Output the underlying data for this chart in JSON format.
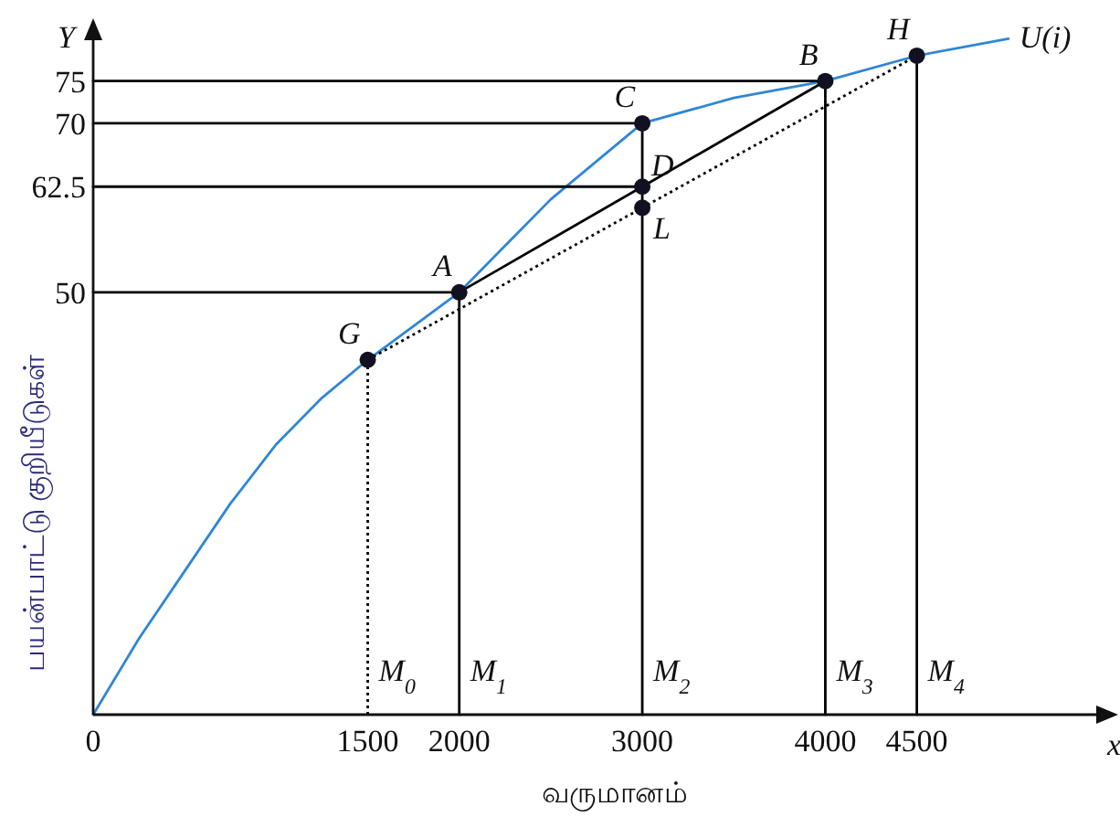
{
  "chart_data": {
    "type": "line",
    "xlabel": "வருமானம்",
    "ylabel": "பயன்பாட்டு  குறியீடுகள்",
    "xlim": [
      0,
      5580
    ],
    "ylim": [
      0,
      82
    ],
    "xticks": [
      0,
      1500,
      2000,
      3000,
      4000,
      4500
    ],
    "yticks": [
      50,
      62.5,
      70,
      75
    ],
    "series": [
      {
        "name": "U(i)",
        "color": "#2f86d6",
        "x": [
          0,
          250,
          500,
          750,
          1000,
          1250,
          1500,
          2000,
          2500,
          3000,
          3500,
          4000,
          4500,
          5000
        ],
        "values": [
          0,
          9,
          17,
          25,
          32,
          37.5,
          42,
          50,
          61,
          70,
          73,
          75,
          78,
          80
        ]
      },
      {
        "color": "#000000",
        "x": [
          2000,
          4000
        ],
        "values": [
          50,
          75
        ]
      },
      {
        "color": "#000000",
        "line_style": "dotted",
        "x": [
          1500,
          4500
        ],
        "values": [
          42,
          78
        ]
      },
      {
        "color": "#000000",
        "line_style": "dotted",
        "x": [
          1500,
          1500
        ],
        "values": [
          0,
          42
        ]
      },
      {
        "color": "#000000",
        "x": [
          2000,
          2000
        ],
        "values": [
          0,
          50
        ]
      },
      {
        "color": "#000000",
        "x": [
          3000,
          3000
        ],
        "values": [
          0,
          70
        ]
      },
      {
        "color": "#000000",
        "x": [
          4000,
          4000
        ],
        "values": [
          0,
          75
        ]
      },
      {
        "color": "#000000",
        "x": [
          4500,
          4500
        ],
        "values": [
          0,
          78
        ]
      },
      {
        "color": "#000000",
        "x": [
          0,
          2000
        ],
        "values": [
          50,
          50
        ]
      },
      {
        "color": "#000000",
        "x": [
          0,
          3000
        ],
        "values": [
          62.5,
          62.5
        ]
      },
      {
        "color": "#000000",
        "x": [
          0,
          3000
        ],
        "values": [
          70,
          70
        ]
      },
      {
        "color": "#000000",
        "x": [
          0,
          4000
        ],
        "values": [
          75,
          75
        ]
      },
      {
        "type": "scatter",
        "marker": "circle",
        "color": "#111122",
        "x": [
          1500,
          2000,
          3000,
          3000,
          3000,
          4000,
          4500
        ],
        "values": [
          42,
          50,
          70,
          62.5,
          60,
          75,
          78
        ]
      }
    ],
    "annotations": [
      {
        "text": "G",
        "x": 1500,
        "y": 42
      },
      {
        "text": "A",
        "x": 2000,
        "y": 50
      },
      {
        "text": "C",
        "x": 3000,
        "y": 70
      },
      {
        "text": "D",
        "x": 3000,
        "y": 62.5
      },
      {
        "text": "L",
        "x": 3000,
        "y": 60
      },
      {
        "text": "B",
        "x": 4000,
        "y": 75
      },
      {
        "text": "H",
        "x": 4500,
        "y": 78
      },
      {
        "text": "M$_{0}$",
        "x": 1500,
        "y": 4
      },
      {
        "text": "M$_{1}$",
        "x": 2000,
        "y": 4
      },
      {
        "text": "M$_{2}$",
        "x": 3000,
        "y": 4
      },
      {
        "text": "M$_{3}$",
        "x": 4000,
        "y": 4
      },
      {
        "text": "M$_{4}$",
        "x": 4500,
        "y": 4
      },
      "Y",
      "x"
    ]
  }
}
